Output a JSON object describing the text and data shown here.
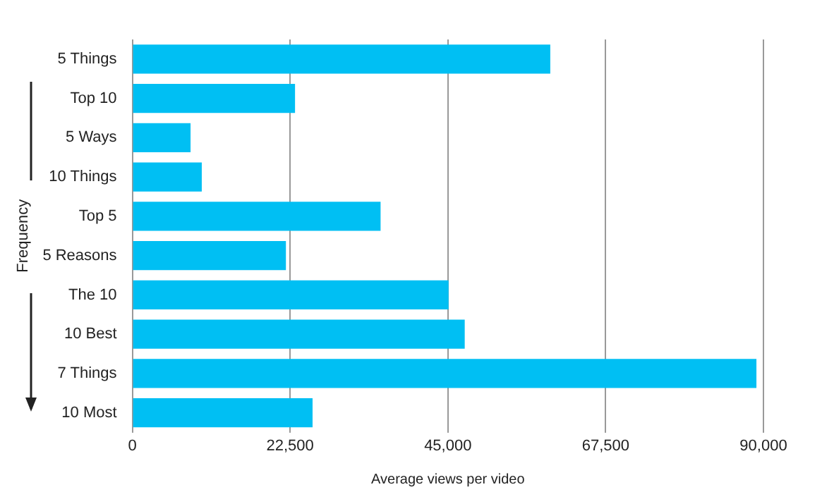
{
  "chart_data": {
    "type": "bar",
    "orientation": "horizontal",
    "categories": [
      "5 Things",
      "Top 10",
      "5 Ways",
      "10 Things",
      "Top 5",
      "5 Reasons",
      "The 10",
      "10 Best",
      "7 Things",
      "10 Most"
    ],
    "values": [
      59600,
      23200,
      8300,
      9900,
      35400,
      21900,
      45100,
      47400,
      89000,
      25700
    ],
    "color": "#00bff3",
    "xlim": [
      0,
      90000
    ],
    "xticks": [
      0,
      {
        "value": 22500,
        "label": "22,500"
      },
      {
        "value": 45000,
        "label": "45,000"
      },
      {
        "value": 67500,
        "label": "67,500"
      },
      {
        "value": 90000,
        "label": "90,000"
      }
    ],
    "xlabel": "Average views per video",
    "ylabel": "Frequency",
    "grid": "x"
  }
}
